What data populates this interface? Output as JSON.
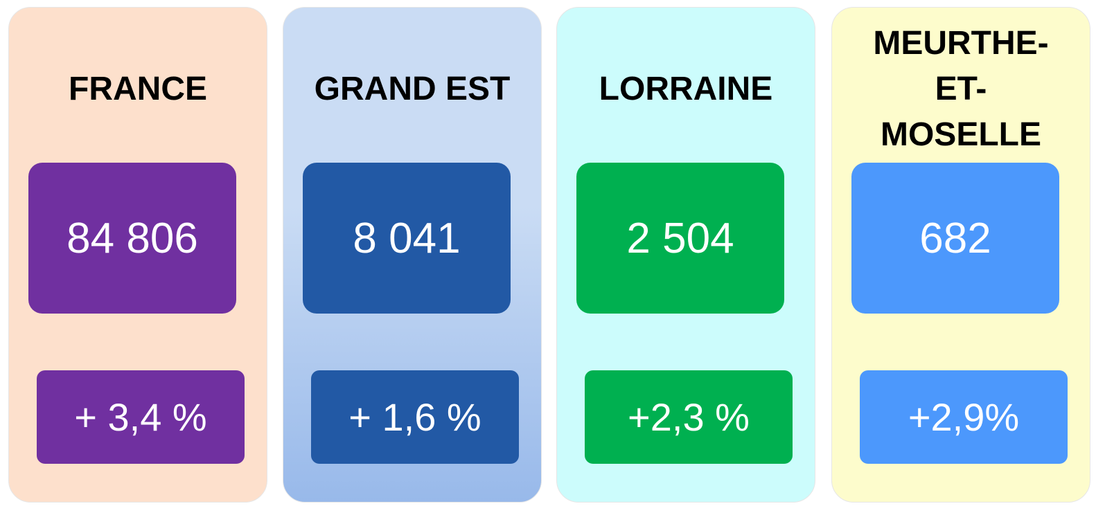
{
  "cards": [
    {
      "title": "FRANCE",
      "value": "84 806",
      "change": "+ 3,4 %",
      "background": "#fde0cc",
      "background_bottom": "#fde0cc",
      "box_color": "#7030a0"
    },
    {
      "title": "GRAND EST",
      "value": "8 041",
      "change": "+ 1,6 %",
      "background": "#cadcf4",
      "background_bottom": "#98b9ea",
      "box_color": "#2259a5"
    },
    {
      "title": "LORRAINE",
      "value": "2 504",
      "change": "+2,3 %",
      "background": "#ccfcfc",
      "background_bottom": "#ccfcfc",
      "box_color": "#00b050"
    },
    {
      "title": "MEURTHE-ET-MOSELLE",
      "value": "682",
      "change": "+2,9%",
      "background": "#fdfccc",
      "background_bottom": "#fdfccc",
      "box_color": "#4c98fc"
    }
  ]
}
